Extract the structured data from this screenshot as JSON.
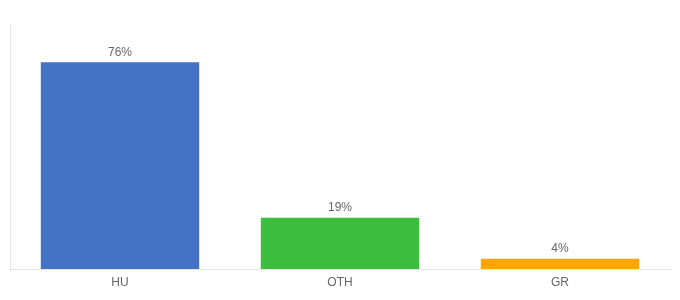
{
  "chart_data": {
    "type": "bar",
    "categories": [
      "HU",
      "OTH",
      "GR"
    ],
    "values": [
      76,
      19,
      4
    ],
    "value_labels": [
      "76%",
      "19%",
      "4%"
    ],
    "colors": [
      "#4472C4",
      "#3DBD3D",
      "#FFA500"
    ],
    "ylim": [
      0,
      90
    ],
    "grid": false,
    "data_labels": true,
    "tick_labels": "x"
  }
}
